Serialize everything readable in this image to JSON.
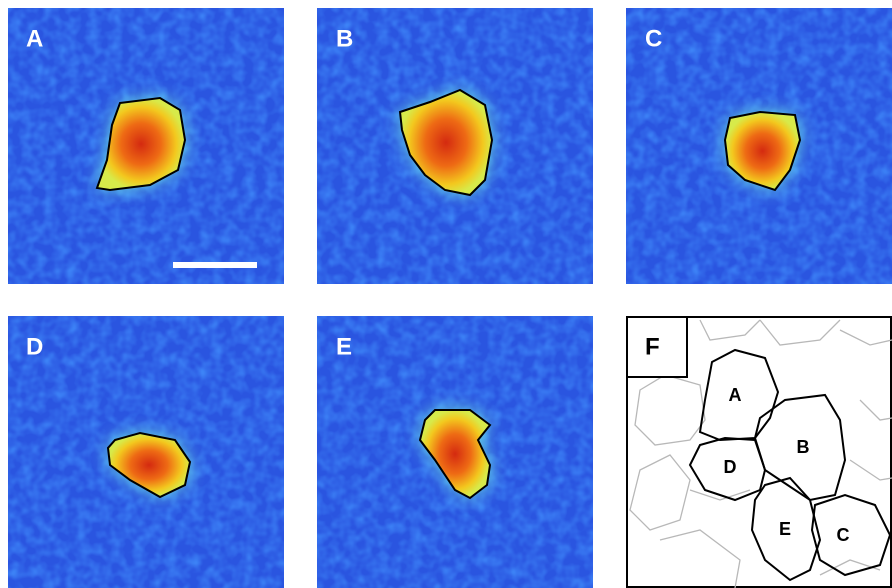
{
  "panels": [
    {
      "label": "A"
    },
    {
      "label": "B"
    },
    {
      "label": "C"
    },
    {
      "label": "D"
    },
    {
      "label": "E"
    }
  ],
  "overlay": {
    "label": "F",
    "cells": [
      "A",
      "B",
      "D",
      "E",
      "C"
    ]
  }
}
